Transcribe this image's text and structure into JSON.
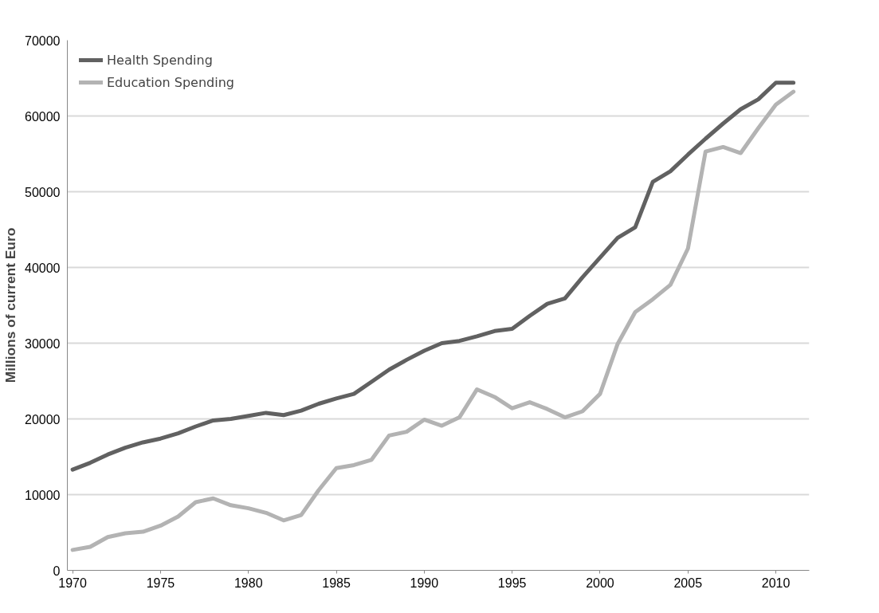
{
  "chart_data": {
    "type": "line",
    "ylabel": "Millions of current Euro",
    "x": [
      1970,
      1971,
      1972,
      1973,
      1974,
      1975,
      1976,
      1977,
      1978,
      1979,
      1980,
      1981,
      1982,
      1983,
      1984,
      1985,
      1986,
      1987,
      1988,
      1989,
      1990,
      1991,
      1992,
      1993,
      1994,
      1995,
      1996,
      1997,
      1998,
      1999,
      2000,
      2001,
      2002,
      2003,
      2004,
      2005,
      2006,
      2007,
      2008,
      2009,
      2010,
      2011
    ],
    "series": [
      {
        "name": "Health Spending",
        "color": "#616161",
        "values": [
          13300,
          14200,
          15300,
          16200,
          16900,
          17400,
          18100,
          19000,
          19800,
          20000,
          20400,
          20800,
          20500,
          21100,
          22000,
          22700,
          23300,
          24900,
          26500,
          27800,
          29000,
          30000,
          30300,
          30900,
          31600,
          31900,
          33600,
          35200,
          35900,
          38700,
          41300,
          43900,
          45300,
          51300,
          52700,
          54900,
          57000,
          59000,
          60900,
          62200,
          64400,
          64400
        ]
      },
      {
        "name": "Education Spending",
        "color": "#b3b3b3",
        "values": [
          2700,
          3100,
          4400,
          4900,
          5100,
          5900,
          7100,
          9000,
          9500,
          8600,
          8200,
          7600,
          6600,
          7300,
          10600,
          13500,
          13900,
          14600,
          17800,
          18300,
          19900,
          19100,
          20200,
          23900,
          22900,
          21400,
          22200,
          21300,
          20200,
          21000,
          23300,
          29900,
          34100,
          35800,
          37700,
          42500,
          55300,
          55900,
          55100,
          58400,
          61500,
          63200
        ]
      }
    ],
    "xlim": [
      1969.7,
      2011.9
    ],
    "xticks": [
      1970,
      1975,
      1980,
      1985,
      1990,
      1995,
      2000,
      2005,
      2010
    ],
    "ylim": [
      0,
      70000
    ],
    "yticks": [
      0,
      10000,
      20000,
      30000,
      40000,
      50000,
      60000,
      70000
    ],
    "grid": "y",
    "legend": "top left",
    "marker": "none",
    "line_style": "solid"
  }
}
